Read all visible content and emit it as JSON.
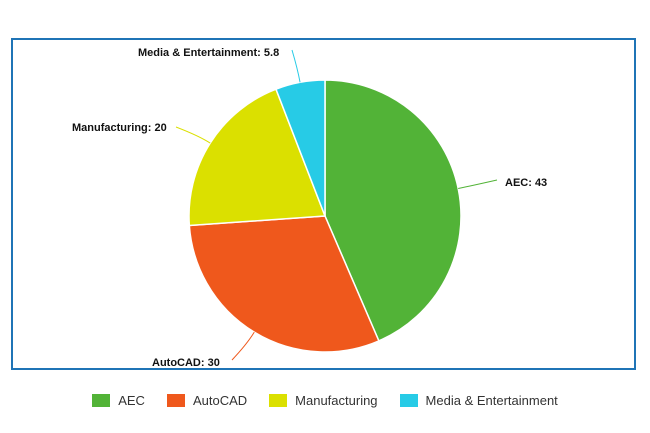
{
  "chart_data": {
    "type": "pie",
    "labels": [
      "AEC",
      "AutoCAD",
      "Manufacturing",
      "Media & Entertainment"
    ],
    "values": [
      43,
      30,
      20,
      5.8
    ],
    "data_labels": [
      "AEC: 43",
      "AutoCAD: 30",
      "Manufacturing: 20",
      "Media & Entertainment: 5.8"
    ],
    "colors": [
      "#52b337",
      "#ef581c",
      "#dbe000",
      "#27cbe6"
    ],
    "legend_placement": "bottom"
  }
}
